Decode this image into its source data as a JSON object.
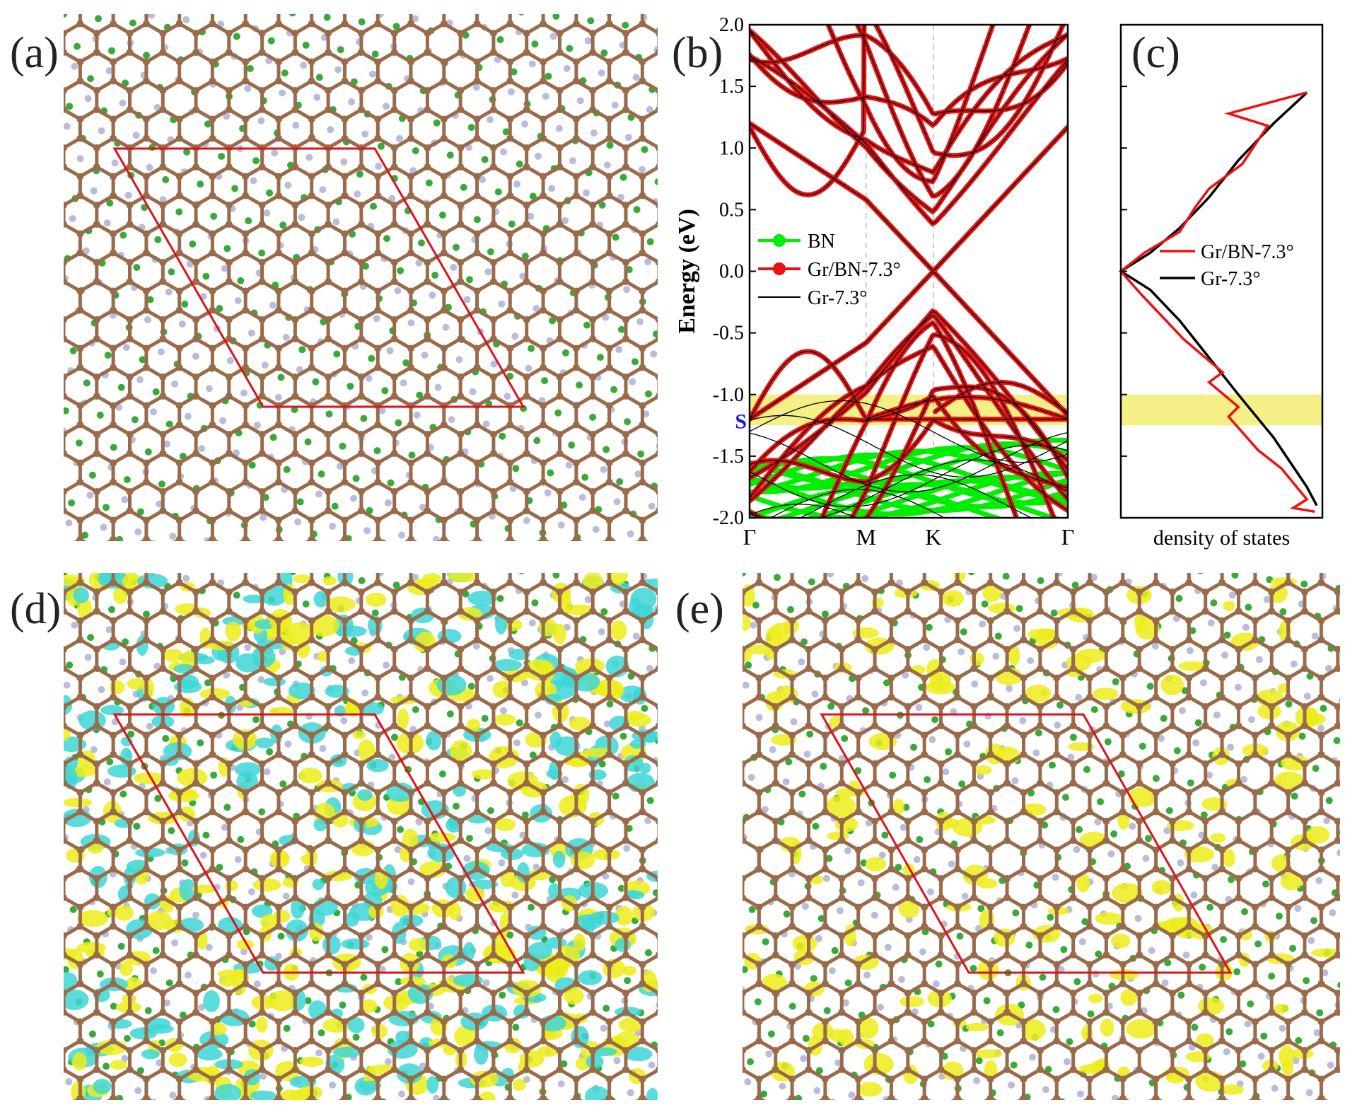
{
  "panels": {
    "a": {
      "letter": "(a)"
    },
    "b": {
      "letter": "(b)"
    },
    "c": {
      "letter": "(c)"
    },
    "d": {
      "letter": "(d)"
    },
    "e": {
      "letter": "(e)"
    }
  },
  "colors": {
    "carbon": "#9a6b4a",
    "boron": "#2ea52e",
    "nitrogen": "#b6b8d8",
    "cell": "#e0101a",
    "charge_pos": "#ecec1a",
    "charge_neg": "#3ed6d6",
    "bn_band": "#00ee00",
    "gr_bn_band": "#ee1010",
    "gr_band": "#000000",
    "highlight": "#f4ef86"
  },
  "chart_data": [
    {
      "panel": "b",
      "type": "line",
      "title": "",
      "ylabel": "Energy (eV)",
      "ylim": [
        -2.0,
        2.0
      ],
      "yticks": [
        "2.0",
        "1.5",
        "1.0",
        "0.5",
        "0.0",
        "-0.5",
        "-1.0",
        "-1.5",
        "-2.0"
      ],
      "x_ticks": [
        "Γ",
        "M",
        "K",
        "Γ"
      ],
      "x_tick_positions": [
        0.0,
        1.0,
        1.577,
        2.732
      ],
      "highlight_band_eV": [
        -1.25,
        -1.0
      ],
      "marker_label": "S",
      "marker_energy": -1.21,
      "legend": [
        "BN",
        "Gr/BN-7.3°",
        "Gr-7.3°"
      ],
      "legend_position": "center-left",
      "series": [
        {
          "name": "Gr/BN-7.3°",
          "style": "red dots",
          "samples": [
            {
              "x": 0.0,
              "y": 1.17
            },
            {
              "x": 1.0,
              "y": 0.58
            },
            {
              "x": 1.577,
              "y": 0.0
            },
            {
              "x": 1.0,
              "y": -0.58
            },
            {
              "x": 0.0,
              "y": -1.21
            },
            {
              "x": 1.577,
              "y": -1.15
            },
            {
              "x": 2.732,
              "y": 1.17
            },
            {
              "x": 2.732,
              "y": -1.21
            }
          ]
        },
        {
          "name": "Gr-7.3°",
          "style": "black line",
          "samples": [
            {
              "x": 0.0,
              "y": 1.17
            },
            {
              "x": 1.0,
              "y": 0.58
            },
            {
              "x": 1.577,
              "y": 0.0
            },
            {
              "x": 1.0,
              "y": -0.58
            },
            {
              "x": 0.0,
              "y": -1.21
            },
            {
              "x": 2.732,
              "y": -1.21
            }
          ]
        },
        {
          "name": "BN",
          "style": "green dots",
          "energy_range": [
            -2.0,
            -1.5
          ]
        }
      ]
    },
    {
      "panel": "c",
      "type": "line",
      "xlabel": "density of states",
      "ylim": [
        -2.0,
        2.0
      ],
      "legend": [
        "Gr/BN-7.3°",
        "Gr-7.3°"
      ],
      "legend_position": "center-right",
      "highlight_band_eV": [
        -1.25,
        -1.0
      ],
      "series": [
        {
          "name": "Gr-7.3°",
          "x": [
            0.95,
            0.78,
            0.6,
            0.45,
            0.3,
            0.15,
            0.0,
            0.15,
            0.3,
            0.45,
            0.6,
            0.78,
            0.95,
            1.0
          ],
          "y": [
            1.45,
            1.2,
            0.9,
            0.6,
            0.35,
            0.15,
            0.0,
            -0.15,
            -0.4,
            -0.7,
            -1.0,
            -1.35,
            -1.75,
            -1.9
          ]
        },
        {
          "name": "Gr/BN-7.3°",
          "x": [
            0.95,
            0.55,
            0.75,
            0.62,
            0.45,
            0.38,
            0.3,
            0.12,
            0.0,
            0.1,
            0.32,
            0.52,
            0.45,
            0.6,
            0.55,
            0.7,
            0.82,
            0.95,
            0.88,
            0.99
          ],
          "y": [
            1.45,
            1.28,
            1.18,
            0.87,
            0.67,
            0.52,
            0.32,
            0.15,
            0.0,
            -0.18,
            -0.55,
            -0.82,
            -0.9,
            -1.1,
            -1.18,
            -1.45,
            -1.6,
            -1.85,
            -1.92,
            -1.95
          ]
        }
      ]
    }
  ]
}
